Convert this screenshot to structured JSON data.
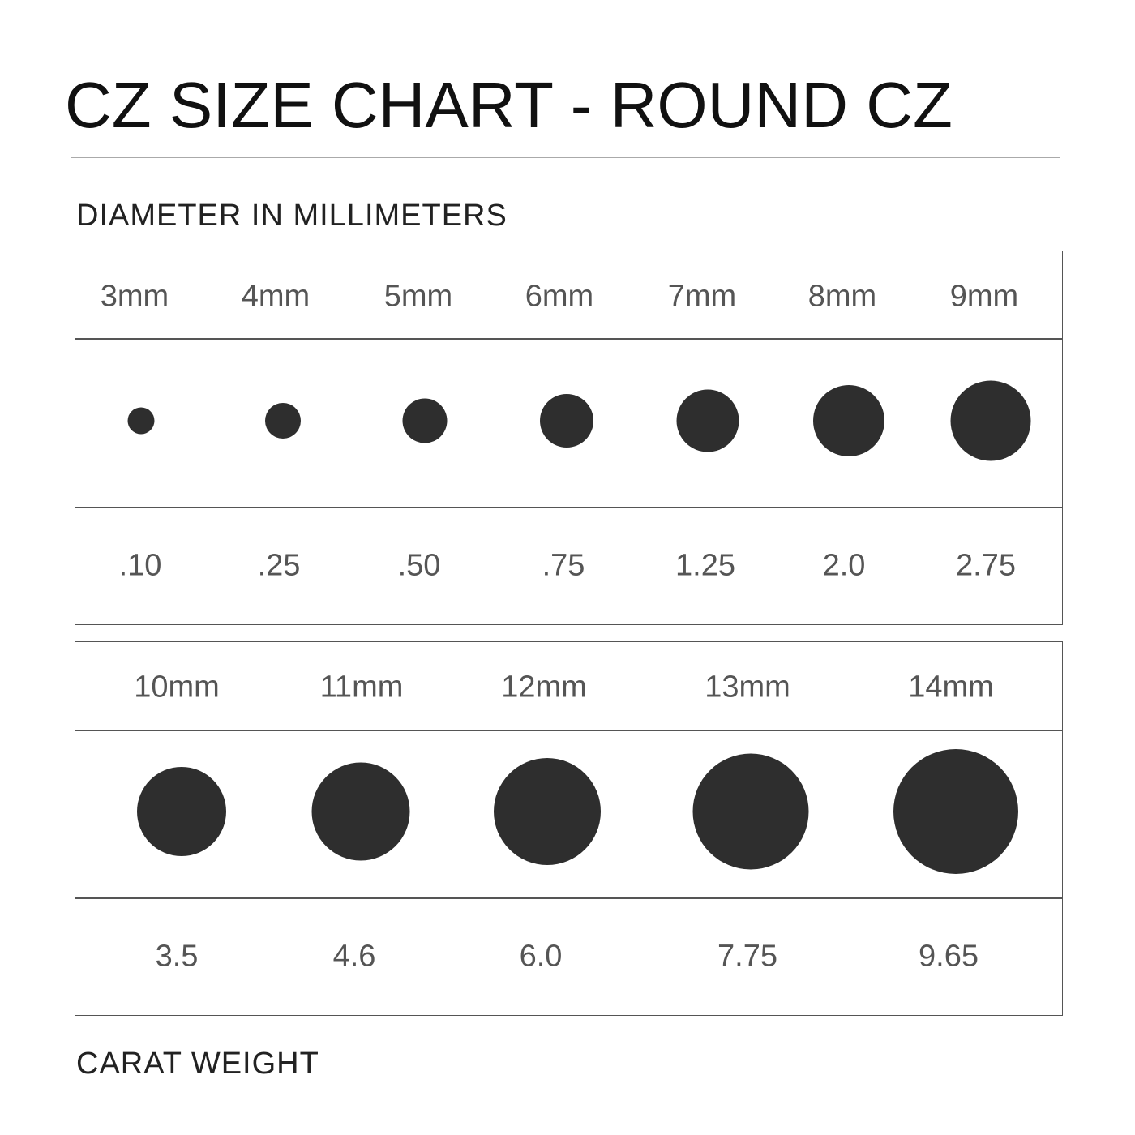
{
  "title": "CZ SIZE CHART - ROUND CZ",
  "diameter_label": "DIAMETER IN MILLIMETERS",
  "carat_label": "CARAT WEIGHT",
  "colors": {
    "stone": "#2e2e2e",
    "text": "#555555",
    "border": "#555555"
  },
  "tables": [
    {
      "sizes": [
        {
          "size": "3mm",
          "diameter_mm": 3,
          "carat": ".10"
        },
        {
          "size": "4mm",
          "diameter_mm": 4,
          "carat": ".25"
        },
        {
          "size": "5mm",
          "diameter_mm": 5,
          "carat": ".50"
        },
        {
          "size": "6mm",
          "diameter_mm": 6,
          "carat": ".75"
        },
        {
          "size": "7mm",
          "diameter_mm": 7,
          "carat": "1.25"
        },
        {
          "size": "8mm",
          "diameter_mm": 8,
          "carat": "2.0"
        },
        {
          "size": "9mm",
          "diameter_mm": 9,
          "carat": "2.75"
        }
      ]
    },
    {
      "sizes": [
        {
          "size": "10mm",
          "diameter_mm": 10,
          "carat": "3.5"
        },
        {
          "size": "11mm",
          "diameter_mm": 11,
          "carat": "4.6"
        },
        {
          "size": "12mm",
          "diameter_mm": 12,
          "carat": "6.0"
        },
        {
          "size": "13mm",
          "diameter_mm": 13,
          "carat": "7.75"
        },
        {
          "size": "14mm",
          "diameter_mm": 14,
          "carat": "9.65"
        }
      ]
    }
  ]
}
